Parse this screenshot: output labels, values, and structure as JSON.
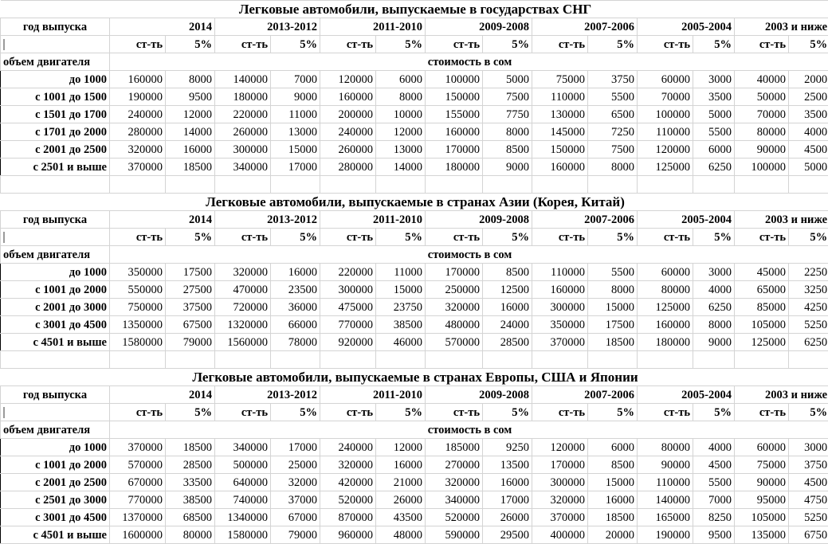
{
  "header": {
    "year_label": "год выпуска",
    "years": [
      "2014",
      "2013-2012",
      "2011-2010",
      "2009-2008",
      "2007-2006",
      "2005-2004",
      "2003 и ниже"
    ],
    "cost_label": "ст-ть",
    "pct_label": "5%",
    "volume_label": "объем двигателя",
    "price_label": "стоимость в сом"
  },
  "sections": [
    {
      "title": "Легковые автомобили, выпускаемые в государствах СНГ",
      "rows": [
        {
          "label": "до 1000",
          "values": [
            "160000",
            "8000",
            "140000",
            "7000",
            "120000",
            "6000",
            "100000",
            "5000",
            "75000",
            "3750",
            "60000",
            "3000",
            "40000",
            "2000"
          ]
        },
        {
          "label": "с 1001 до 1500",
          "values": [
            "190000",
            "9500",
            "180000",
            "9000",
            "160000",
            "8000",
            "150000",
            "7500",
            "110000",
            "5500",
            "70000",
            "3500",
            "50000",
            "2500"
          ]
        },
        {
          "label": "с 1501 до 1700",
          "values": [
            "240000",
            "12000",
            "220000",
            "11000",
            "200000",
            "10000",
            "155000",
            "7750",
            "130000",
            "6500",
            "100000",
            "5000",
            "70000",
            "3500"
          ]
        },
        {
          "label": "с 1701 до 2000",
          "values": [
            "280000",
            "14000",
            "260000",
            "13000",
            "240000",
            "12000",
            "160000",
            "8000",
            "145000",
            "7250",
            "110000",
            "5500",
            "80000",
            "4000"
          ]
        },
        {
          "label": "с 2001 до 2500",
          "values": [
            "320000",
            "16000",
            "300000",
            "15000",
            "260000",
            "13000",
            "170000",
            "8500",
            "150000",
            "7500",
            "120000",
            "6000",
            "90000",
            "4500"
          ]
        },
        {
          "label": "с 2501 и выше",
          "values": [
            "370000",
            "18500",
            "340000",
            "17000",
            "280000",
            "14000",
            "180000",
            "9000",
            "160000",
            "8000",
            "125000",
            "6250",
            "100000",
            "5000"
          ]
        }
      ]
    },
    {
      "title": "Легковые автомобили, выпускаемые в странах Азии (Корея, Китай)",
      "rows": [
        {
          "label": "до 1000",
          "values": [
            "350000",
            "17500",
            "320000",
            "16000",
            "220000",
            "11000",
            "170000",
            "8500",
            "110000",
            "5500",
            "60000",
            "3000",
            "45000",
            "2250"
          ]
        },
        {
          "label": "с 1001 до 2000",
          "values": [
            "550000",
            "27500",
            "470000",
            "23500",
            "300000",
            "15000",
            "250000",
            "12500",
            "160000",
            "8000",
            "80000",
            "4000",
            "65000",
            "3250"
          ]
        },
        {
          "label": "с 2001 до 3000",
          "values": [
            "750000",
            "37500",
            "720000",
            "36000",
            "475000",
            "23750",
            "320000",
            "16000",
            "300000",
            "15000",
            "125000",
            "6250",
            "85000",
            "4250"
          ]
        },
        {
          "label": "с 3001 до 4500",
          "values": [
            "1350000",
            "67500",
            "1320000",
            "66000",
            "770000",
            "38500",
            "480000",
            "24000",
            "350000",
            "17500",
            "160000",
            "8000",
            "105000",
            "5250"
          ]
        },
        {
          "label": "с 4501 и выше",
          "values": [
            "1580000",
            "79000",
            "1560000",
            "78000",
            "920000",
            "46000",
            "570000",
            "28500",
            "370000",
            "18500",
            "180000",
            "9000",
            "125000",
            "6250"
          ]
        }
      ]
    },
    {
      "title": "Легковые автомобили, выпускаемые в странах Европы, США и Японии",
      "rows": [
        {
          "label": "до 1000",
          "values": [
            "370000",
            "18500",
            "340000",
            "17000",
            "240000",
            "12000",
            "185000",
            "9250",
            "120000",
            "6000",
            "80000",
            "4000",
            "60000",
            "3000"
          ]
        },
        {
          "label": "с 1001 до 2000",
          "values": [
            "570000",
            "28500",
            "500000",
            "25000",
            "320000",
            "16000",
            "270000",
            "13500",
            "170000",
            "8500",
            "90000",
            "4500",
            "75000",
            "3750"
          ]
        },
        {
          "label": "с 2001 до 2500",
          "values": [
            "670000",
            "33500",
            "640000",
            "32000",
            "420000",
            "21000",
            "320000",
            "16000",
            "300000",
            "15000",
            "110000",
            "5500",
            "90000",
            "4500"
          ]
        },
        {
          "label": "с 2501 до 3000",
          "values": [
            "770000",
            "38500",
            "740000",
            "37000",
            "520000",
            "26000",
            "340000",
            "17000",
            "320000",
            "16000",
            "140000",
            "7000",
            "95000",
            "4750"
          ]
        },
        {
          "label": "с 3001 до 4500",
          "values": [
            "1370000",
            "68500",
            "1340000",
            "67000",
            "870000",
            "43500",
            "520000",
            "26000",
            "370000",
            "18500",
            "165000",
            "8250",
            "105000",
            "5250"
          ]
        },
        {
          "label": "с 4501 и выше",
          "values": [
            "1600000",
            "80000",
            "1580000",
            "79000",
            "960000",
            "48000",
            "590000",
            "29500",
            "400000",
            "20000",
            "190000",
            "9500",
            "135000",
            "6750"
          ]
        }
      ]
    }
  ]
}
